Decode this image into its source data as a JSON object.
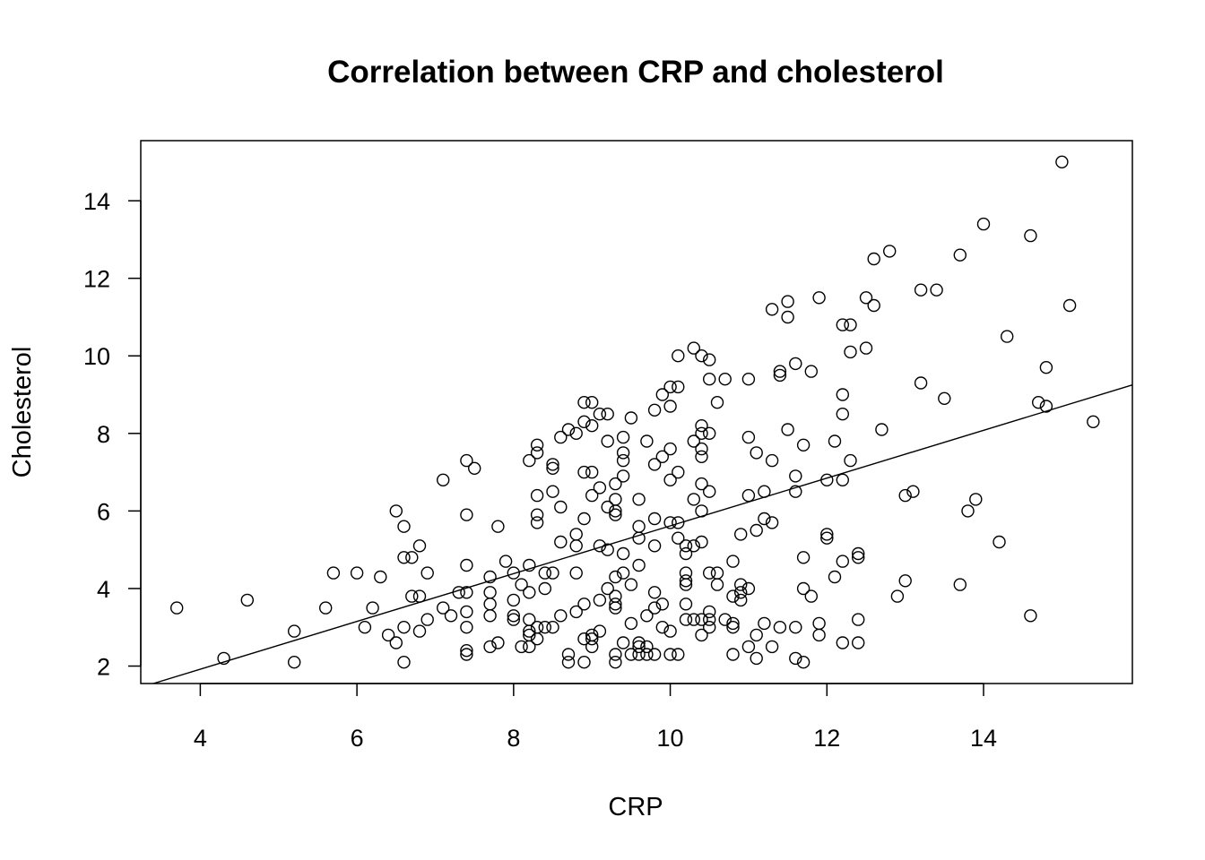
{
  "chart_data": {
    "type": "scatter",
    "title": "Correlation between CRP and cholesterol",
    "xlabel": "CRP",
    "ylabel": "Cholesterol",
    "xlim": [
      3.24,
      15.9
    ],
    "ylim": [
      1.55,
      15.55
    ],
    "xticks": [
      4,
      6,
      8,
      10,
      12,
      14
    ],
    "yticks": [
      2,
      4,
      6,
      8,
      10,
      12,
      14
    ],
    "grid": false,
    "legend": "none",
    "regression_line": {
      "x": [
        3.4,
        15.9
      ],
      "y": [
        1.55,
        9.25
      ]
    },
    "points": [
      [
        3.7,
        3.5
      ],
      [
        4.3,
        2.2
      ],
      [
        4.6,
        3.7
      ],
      [
        5.2,
        2.9
      ],
      [
        5.2,
        2.1
      ],
      [
        5.6,
        3.5
      ],
      [
        5.7,
        4.4
      ],
      [
        6.0,
        4.4
      ],
      [
        6.1,
        3.0
      ],
      [
        6.2,
        3.5
      ],
      [
        6.3,
        4.3
      ],
      [
        6.4,
        2.8
      ],
      [
        6.5,
        6.0
      ],
      [
        6.5,
        2.6
      ],
      [
        6.6,
        5.6
      ],
      [
        6.6,
        4.8
      ],
      [
        6.6,
        3.0
      ],
      [
        6.6,
        2.1
      ],
      [
        6.7,
        4.8
      ],
      [
        6.7,
        3.8
      ],
      [
        6.8,
        5.1
      ],
      [
        6.8,
        3.8
      ],
      [
        6.8,
        2.9
      ],
      [
        6.9,
        4.4
      ],
      [
        6.9,
        3.2
      ],
      [
        7.1,
        6.8
      ],
      [
        7.1,
        3.5
      ],
      [
        7.2,
        3.3
      ],
      [
        7.3,
        3.9
      ],
      [
        7.4,
        7.3
      ],
      [
        7.5,
        7.1
      ],
      [
        7.4,
        5.9
      ],
      [
        7.4,
        4.6
      ],
      [
        7.4,
        3.9
      ],
      [
        7.4,
        3.4
      ],
      [
        7.4,
        3.0
      ],
      [
        7.4,
        2.4
      ],
      [
        7.4,
        2.3
      ],
      [
        7.7,
        4.3
      ],
      [
        7.7,
        3.9
      ],
      [
        7.7,
        3.6
      ],
      [
        7.7,
        3.3
      ],
      [
        7.7,
        2.5
      ],
      [
        7.8,
        5.6
      ],
      [
        7.8,
        2.6
      ],
      [
        7.9,
        4.7
      ],
      [
        8.0,
        4.4
      ],
      [
        8.0,
        3.7
      ],
      [
        8.0,
        3.3
      ],
      [
        8.0,
        3.2
      ],
      [
        8.1,
        4.1
      ],
      [
        8.1,
        2.5
      ],
      [
        8.2,
        7.3
      ],
      [
        8.2,
        4.6
      ],
      [
        8.2,
        3.9
      ],
      [
        8.2,
        3.2
      ],
      [
        8.2,
        2.9
      ],
      [
        8.2,
        2.8
      ],
      [
        8.2,
        2.5
      ],
      [
        8.3,
        7.7
      ],
      [
        8.3,
        7.5
      ],
      [
        8.3,
        6.4
      ],
      [
        8.3,
        5.9
      ],
      [
        8.3,
        5.7
      ],
      [
        8.3,
        3.0
      ],
      [
        8.3,
        2.7
      ],
      [
        8.4,
        4.4
      ],
      [
        8.4,
        4.0
      ],
      [
        8.4,
        3.0
      ],
      [
        8.5,
        7.2
      ],
      [
        8.5,
        7.1
      ],
      [
        8.5,
        6.5
      ],
      [
        8.5,
        4.4
      ],
      [
        8.5,
        3.0
      ],
      [
        8.6,
        7.9
      ],
      [
        8.6,
        6.1
      ],
      [
        8.6,
        5.2
      ],
      [
        8.6,
        3.3
      ],
      [
        8.7,
        8.1
      ],
      [
        8.7,
        2.3
      ],
      [
        8.7,
        2.1
      ],
      [
        8.8,
        8.0
      ],
      [
        8.8,
        5.4
      ],
      [
        8.8,
        5.1
      ],
      [
        8.8,
        4.4
      ],
      [
        8.8,
        3.4
      ],
      [
        8.9,
        8.8
      ],
      [
        8.9,
        8.3
      ],
      [
        8.9,
        7.0
      ],
      [
        8.9,
        5.8
      ],
      [
        8.9,
        3.6
      ],
      [
        8.9,
        2.7
      ],
      [
        8.9,
        2.1
      ],
      [
        9.0,
        8.8
      ],
      [
        9.0,
        8.2
      ],
      [
        9.0,
        7.0
      ],
      [
        9.0,
        6.4
      ],
      [
        9.0,
        2.8
      ],
      [
        9.0,
        2.7
      ],
      [
        9.0,
        2.5
      ],
      [
        9.1,
        8.5
      ],
      [
        9.1,
        6.6
      ],
      [
        9.1,
        5.1
      ],
      [
        9.1,
        3.7
      ],
      [
        9.1,
        2.9
      ],
      [
        9.2,
        8.5
      ],
      [
        9.2,
        7.8
      ],
      [
        9.2,
        6.1
      ],
      [
        9.2,
        5.0
      ],
      [
        9.2,
        4.0
      ],
      [
        9.3,
        6.7
      ],
      [
        9.3,
        6.3
      ],
      [
        9.3,
        6.0
      ],
      [
        9.3,
        5.9
      ],
      [
        9.3,
        4.3
      ],
      [
        9.3,
        3.8
      ],
      [
        9.3,
        3.6
      ],
      [
        9.3,
        3.5
      ],
      [
        9.3,
        2.3
      ],
      [
        9.3,
        2.1
      ],
      [
        9.4,
        7.9
      ],
      [
        9.4,
        7.5
      ],
      [
        9.4,
        7.3
      ],
      [
        9.4,
        6.9
      ],
      [
        9.4,
        4.9
      ],
      [
        9.4,
        4.4
      ],
      [
        9.4,
        2.6
      ],
      [
        9.5,
        8.4
      ],
      [
        9.5,
        4.1
      ],
      [
        9.5,
        3.1
      ],
      [
        9.5,
        2.3
      ],
      [
        9.6,
        6.3
      ],
      [
        9.6,
        5.6
      ],
      [
        9.6,
        5.3
      ],
      [
        9.6,
        4.6
      ],
      [
        9.6,
        2.6
      ],
      [
        9.6,
        2.5
      ],
      [
        9.6,
        2.3
      ],
      [
        9.7,
        7.8
      ],
      [
        9.7,
        3.3
      ],
      [
        9.7,
        2.5
      ],
      [
        9.7,
        2.3
      ],
      [
        9.8,
        8.6
      ],
      [
        9.8,
        7.2
      ],
      [
        9.8,
        5.8
      ],
      [
        9.8,
        5.1
      ],
      [
        9.8,
        3.9
      ],
      [
        9.8,
        3.5
      ],
      [
        9.8,
        2.3
      ],
      [
        9.9,
        9.0
      ],
      [
        9.9,
        7.4
      ],
      [
        9.9,
        3.6
      ],
      [
        9.9,
        3.0
      ],
      [
        10.0,
        9.2
      ],
      [
        10.0,
        8.7
      ],
      [
        10.0,
        7.6
      ],
      [
        10.0,
        6.8
      ],
      [
        10.0,
        5.7
      ],
      [
        10.0,
        2.9
      ],
      [
        10.0,
        2.3
      ],
      [
        10.1,
        10.0
      ],
      [
        10.1,
        9.2
      ],
      [
        10.1,
        7.0
      ],
      [
        10.1,
        5.7
      ],
      [
        10.1,
        5.3
      ],
      [
        10.1,
        2.3
      ],
      [
        10.2,
        5.1
      ],
      [
        10.2,
        4.9
      ],
      [
        10.2,
        4.4
      ],
      [
        10.2,
        4.2
      ],
      [
        10.2,
        4.1
      ],
      [
        10.2,
        3.6
      ],
      [
        10.2,
        3.2
      ],
      [
        10.3,
        10.2
      ],
      [
        10.3,
        7.8
      ],
      [
        10.3,
        6.3
      ],
      [
        10.3,
        5.1
      ],
      [
        10.3,
        3.2
      ],
      [
        10.4,
        10.0
      ],
      [
        10.4,
        8.2
      ],
      [
        10.4,
        8.0
      ],
      [
        10.4,
        7.6
      ],
      [
        10.4,
        7.4
      ],
      [
        10.4,
        6.7
      ],
      [
        10.4,
        6.0
      ],
      [
        10.4,
        5.2
      ],
      [
        10.4,
        3.2
      ],
      [
        10.4,
        2.8
      ],
      [
        10.5,
        9.9
      ],
      [
        10.5,
        9.4
      ],
      [
        10.5,
        8.0
      ],
      [
        10.5,
        6.5
      ],
      [
        10.5,
        4.4
      ],
      [
        10.5,
        3.4
      ],
      [
        10.5,
        3.2
      ],
      [
        10.5,
        3.0
      ],
      [
        10.6,
        8.8
      ],
      [
        10.6,
        4.4
      ],
      [
        10.6,
        4.1
      ],
      [
        10.7,
        9.4
      ],
      [
        10.7,
        3.2
      ],
      [
        10.8,
        4.7
      ],
      [
        10.8,
        3.8
      ],
      [
        10.8,
        3.1
      ],
      [
        10.8,
        3.0
      ],
      [
        10.8,
        2.3
      ],
      [
        10.9,
        5.4
      ],
      [
        10.9,
        4.1
      ],
      [
        10.9,
        3.9
      ],
      [
        10.9,
        3.7
      ],
      [
        11.0,
        9.4
      ],
      [
        11.0,
        7.9
      ],
      [
        11.0,
        6.4
      ],
      [
        11.0,
        4.0
      ],
      [
        11.0,
        2.5
      ],
      [
        11.1,
        7.5
      ],
      [
        11.1,
        5.5
      ],
      [
        11.1,
        2.8
      ],
      [
        11.1,
        2.2
      ],
      [
        11.2,
        6.5
      ],
      [
        11.2,
        5.8
      ],
      [
        11.2,
        3.1
      ],
      [
        11.3,
        11.2
      ],
      [
        11.3,
        7.3
      ],
      [
        11.3,
        5.7
      ],
      [
        11.3,
        2.5
      ],
      [
        11.4,
        9.6
      ],
      [
        11.4,
        9.5
      ],
      [
        11.4,
        3.0
      ],
      [
        11.5,
        11.4
      ],
      [
        11.5,
        11.0
      ],
      [
        11.5,
        8.1
      ],
      [
        11.6,
        9.8
      ],
      [
        11.6,
        6.9
      ],
      [
        11.6,
        6.5
      ],
      [
        11.6,
        3.0
      ],
      [
        11.6,
        2.2
      ],
      [
        11.7,
        7.7
      ],
      [
        11.7,
        4.8
      ],
      [
        11.7,
        4.0
      ],
      [
        11.7,
        2.1
      ],
      [
        11.8,
        9.6
      ],
      [
        11.8,
        3.8
      ],
      [
        11.9,
        11.5
      ],
      [
        11.9,
        3.1
      ],
      [
        11.9,
        2.8
      ],
      [
        12.0,
        6.8
      ],
      [
        12.0,
        5.4
      ],
      [
        12.0,
        5.3
      ],
      [
        12.1,
        7.8
      ],
      [
        12.1,
        4.3
      ],
      [
        12.2,
        10.8
      ],
      [
        12.2,
        9.0
      ],
      [
        12.2,
        8.5
      ],
      [
        12.2,
        6.8
      ],
      [
        12.2,
        4.7
      ],
      [
        12.2,
        2.6
      ],
      [
        12.3,
        10.8
      ],
      [
        12.3,
        10.1
      ],
      [
        12.3,
        7.3
      ],
      [
        12.4,
        4.9
      ],
      [
        12.4,
        4.8
      ],
      [
        12.4,
        3.2
      ],
      [
        12.4,
        2.6
      ],
      [
        12.5,
        11.5
      ],
      [
        12.5,
        10.2
      ],
      [
        12.6,
        12.5
      ],
      [
        12.6,
        11.3
      ],
      [
        12.7,
        8.1
      ],
      [
        12.8,
        12.7
      ],
      [
        12.9,
        3.8
      ],
      [
        13.0,
        6.4
      ],
      [
        13.0,
        4.2
      ],
      [
        13.1,
        6.5
      ],
      [
        13.2,
        11.7
      ],
      [
        13.2,
        9.3
      ],
      [
        13.4,
        11.7
      ],
      [
        13.5,
        8.9
      ],
      [
        13.7,
        12.6
      ],
      [
        13.7,
        4.1
      ],
      [
        13.8,
        6.0
      ],
      [
        13.9,
        6.3
      ],
      [
        14.0,
        13.4
      ],
      [
        14.2,
        5.2
      ],
      [
        14.3,
        10.5
      ],
      [
        14.6,
        13.1
      ],
      [
        14.6,
        3.3
      ],
      [
        14.7,
        8.8
      ],
      [
        14.8,
        9.7
      ],
      [
        14.8,
        8.7
      ],
      [
        15.0,
        15.0
      ],
      [
        15.1,
        11.3
      ],
      [
        15.4,
        8.3
      ]
    ]
  }
}
